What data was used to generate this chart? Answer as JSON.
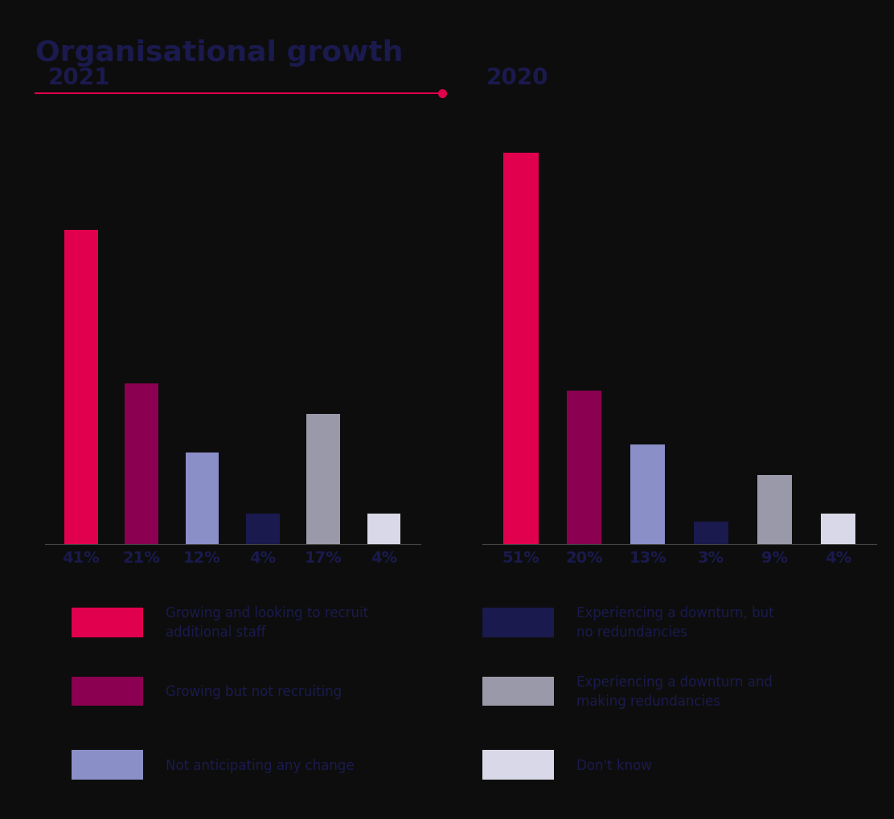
{
  "title": "Organisational growth",
  "title_color": "#1a1a4e",
  "title_fontsize": 26,
  "title_fontweight": "bold",
  "line_color": "#e0004d",
  "dot_color": "#e0004d",
  "background_color": "#0d0d0d",
  "text_bg": "#0d0d0d",
  "year_2021": "2021",
  "year_2020": "2020",
  "year_fontsize": 20,
  "year_color": "#1a1a4e",
  "values_2021": [
    41,
    21,
    12,
    4,
    17,
    4
  ],
  "values_2020": [
    51,
    20,
    13,
    3,
    9,
    4
  ],
  "labels_2021": [
    "41%",
    "21%",
    "12%",
    "4%",
    "17%",
    "4%"
  ],
  "labels_2020": [
    "51%",
    "20%",
    "13%",
    "3%",
    "9%",
    "4%"
  ],
  "bar_colors": [
    "#e0004d",
    "#8b0050",
    "#8b8fc8",
    "#1a1a4e",
    "#9999aa",
    "#d8d8e8"
  ],
  "bar_width": 0.55,
  "label_fontsize": 14,
  "label_color": "#1a1a4e",
  "legend_items_left": [
    {
      "label": "Growing and looking to recruit\nadditional staff",
      "color": "#e0004d"
    },
    {
      "label": "Growing but not recruiting",
      "color": "#8b0050"
    },
    {
      "label": "Not anticipating any change",
      "color": "#8b8fc8"
    }
  ],
  "legend_items_right": [
    {
      "label": "Experiencing a downturn, but\nno redundancies",
      "color": "#1a1a4e"
    },
    {
      "label": "Experiencing a downturn and\nmaking redundancies",
      "color": "#9999aa"
    },
    {
      "label": "Don't know",
      "color": "#d8d8e8"
    }
  ],
  "legend_fontsize": 12,
  "legend_color": "#1a1a4e"
}
